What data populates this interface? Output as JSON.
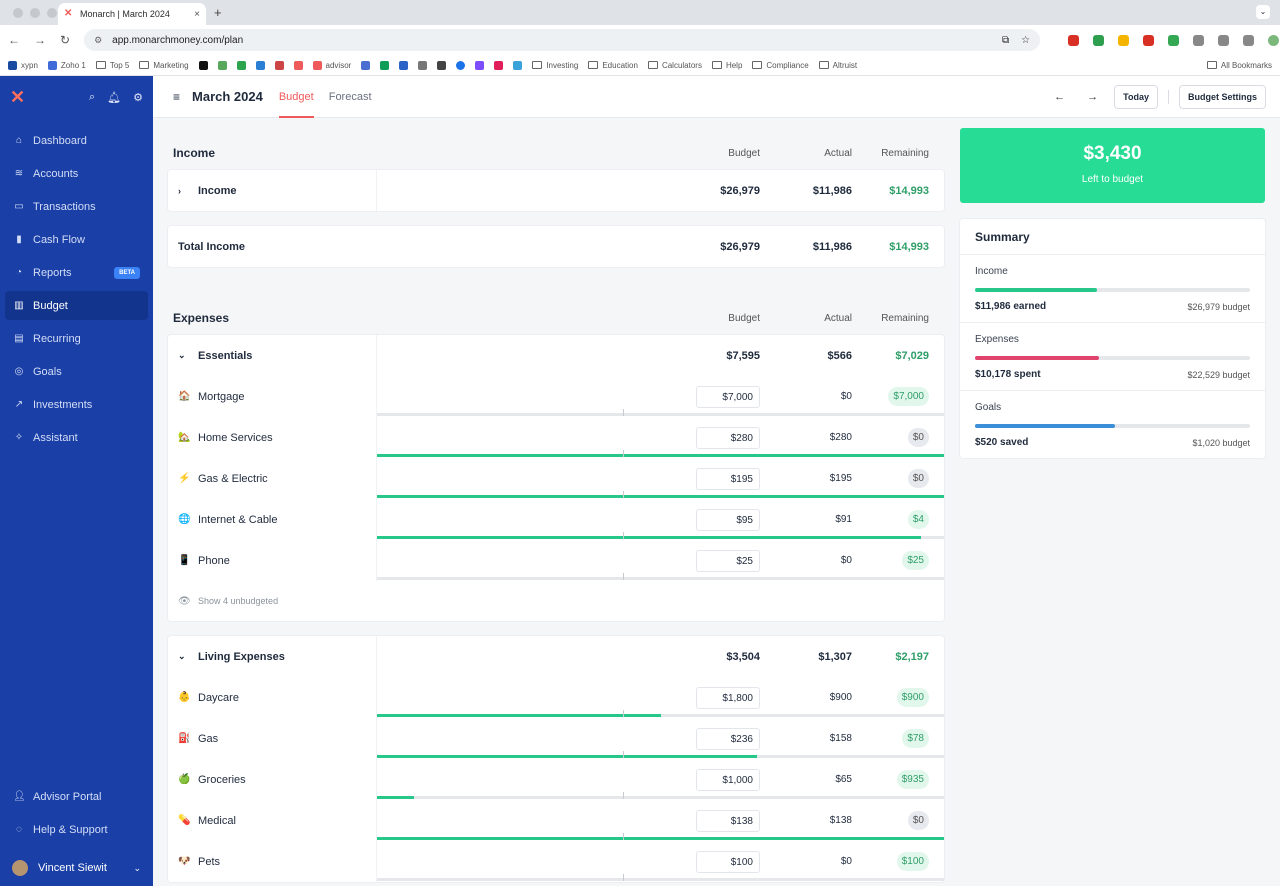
{
  "browser": {
    "tab_title": "Monarch | March 2024",
    "url": "app.monarchmoney.com/plan",
    "bookmarks": [
      "xypn",
      "Zoho 1",
      "Top 5",
      "Marketing",
      "advisor",
      "Investing",
      "Education",
      "Calculators",
      "Help",
      "Compliance",
      "Altruist"
    ],
    "all_bookmarks": "All Bookmarks"
  },
  "sidebar": {
    "items": [
      {
        "label": "Dashboard",
        "icon": "home-icon"
      },
      {
        "label": "Accounts",
        "icon": "layers-icon"
      },
      {
        "label": "Transactions",
        "icon": "card-icon"
      },
      {
        "label": "Cash Flow",
        "icon": "bars-icon"
      },
      {
        "label": "Reports",
        "icon": "clock-icon",
        "badge": "BETA"
      },
      {
        "label": "Budget",
        "icon": "map-icon"
      },
      {
        "label": "Recurring",
        "icon": "calendar-icon"
      },
      {
        "label": "Goals",
        "icon": "target-icon"
      },
      {
        "label": "Investments",
        "icon": "trend-icon"
      },
      {
        "label": "Assistant",
        "icon": "sparkle-icon"
      }
    ],
    "advisor_portal": "Advisor Portal",
    "help": "Help & Support",
    "user": "Vincent Siewit"
  },
  "topbar": {
    "title": "March 2024",
    "tab_budget": "Budget",
    "tab_forecast": "Forecast",
    "today": "Today",
    "settings": "Budget Settings"
  },
  "columns": {
    "budget": "Budget",
    "actual": "Actual",
    "remaining": "Remaining"
  },
  "income": {
    "heading": "Income",
    "row": {
      "label": "Income",
      "budget": "$26,979",
      "actual": "$11,986",
      "remaining": "$14,993"
    },
    "total": {
      "label": "Total Income",
      "budget": "$26,979",
      "actual": "$11,986",
      "remaining": "$14,993"
    }
  },
  "expenses": {
    "heading": "Expenses",
    "essentials": {
      "label": "Essentials",
      "budget": "$7,595",
      "actual": "$566",
      "remaining": "$7,029",
      "items": [
        {
          "emoji": "🏠",
          "label": "Mortgage",
          "budget": "$7,000",
          "actual": "$0",
          "remaining": "$7,000",
          "progress": 0
        },
        {
          "emoji": "🏡",
          "label": "Home Services",
          "budget": "$280",
          "actual": "$280",
          "remaining": "$0",
          "progress": 1
        },
        {
          "emoji": "⚡",
          "label": "Gas & Electric",
          "budget": "$195",
          "actual": "$195",
          "remaining": "$0",
          "progress": 1
        },
        {
          "emoji": "🌐",
          "label": "Internet & Cable",
          "budget": "$95",
          "actual": "$91",
          "remaining": "$4",
          "progress": 0.96
        },
        {
          "emoji": "📱",
          "label": "Phone",
          "budget": "$25",
          "actual": "$0",
          "remaining": "$25",
          "progress": 0
        }
      ],
      "unbudgeted": "Show 4 unbudgeted"
    },
    "living": {
      "label": "Living Expenses",
      "budget": "$3,504",
      "actual": "$1,307",
      "remaining": "$2,197",
      "items": [
        {
          "emoji": "👶",
          "label": "Daycare",
          "budget": "$1,800",
          "actual": "$900",
          "remaining": "$900",
          "progress": 0.5
        },
        {
          "emoji": "⛽",
          "label": "Gas",
          "budget": "$236",
          "actual": "$158",
          "remaining": "$78",
          "progress": 0.67
        },
        {
          "emoji": "🍏",
          "label": "Groceries",
          "budget": "$1,000",
          "actual": "$65",
          "remaining": "$935",
          "progress": 0.065
        },
        {
          "emoji": "💊",
          "label": "Medical",
          "budget": "$138",
          "actual": "$138",
          "remaining": "$0",
          "progress": 1
        },
        {
          "emoji": "🐶",
          "label": "Pets",
          "budget": "$100",
          "actual": "$0",
          "remaining": "$100",
          "progress": 0
        }
      ]
    }
  },
  "left_to_budget": {
    "amount": "$3,430",
    "label": "Left to budget"
  },
  "summary": {
    "heading": "Summary",
    "income": {
      "label": "Income",
      "left": "$11,986 earned",
      "right": "$26,979 budget",
      "progress": 0.444,
      "color": "#27c78a"
    },
    "expenses": {
      "label": "Expenses",
      "left": "$10,178 spent",
      "right": "$22,529 budget",
      "progress": 0.452,
      "color": "#e0446d"
    },
    "goals": {
      "label": "Goals",
      "left": "$520 saved",
      "right": "$1,020 budget",
      "progress": 0.51,
      "color": "#3b8fd8"
    }
  }
}
